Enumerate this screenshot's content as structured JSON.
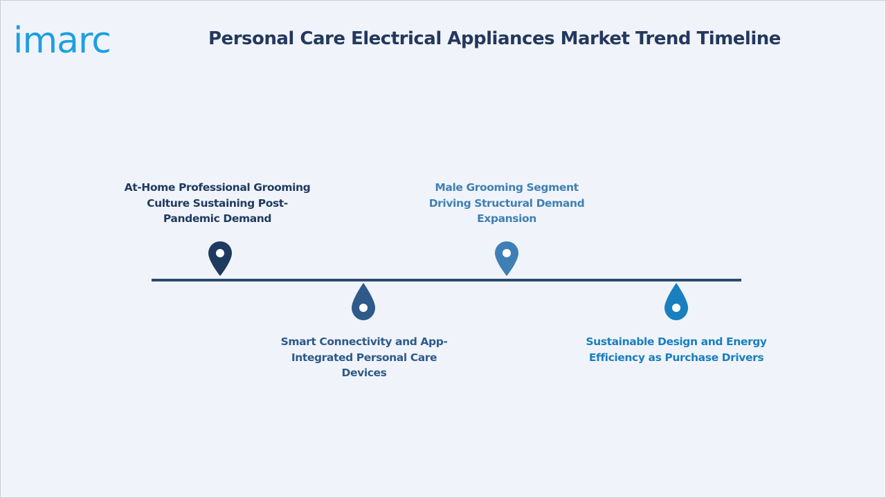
{
  "header": {
    "logo_text": "imarc",
    "title": "Personal Care Electrical Appliances Market Trend Timeline"
  },
  "timeline": {
    "events": [
      {
        "label": "At-Home Professional Grooming Culture Sustaining Post-Pandemic Demand",
        "position": "above",
        "color": "#1f3a5f",
        "marker_icon": "map-pin-icon"
      },
      {
        "label": "Smart Connectivity and App-Integrated Personal Care Devices",
        "position": "below",
        "color": "#2e5a8a",
        "marker_icon": "water-drop-icon"
      },
      {
        "label": "Male Grooming Segment Driving Structural Demand Expansion",
        "position": "above",
        "color": "#3f7fb5",
        "marker_icon": "map-pin-icon"
      },
      {
        "label": "Sustainable Design and Energy Efficiency as Purchase Drivers",
        "position": "below",
        "color": "#1a7fbf",
        "marker_icon": "water-drop-icon"
      }
    ]
  },
  "colors": {
    "background": "#f0f4fa",
    "title": "#24385e",
    "axis": "#2b4a6e",
    "logo": "#1e9fe0"
  }
}
